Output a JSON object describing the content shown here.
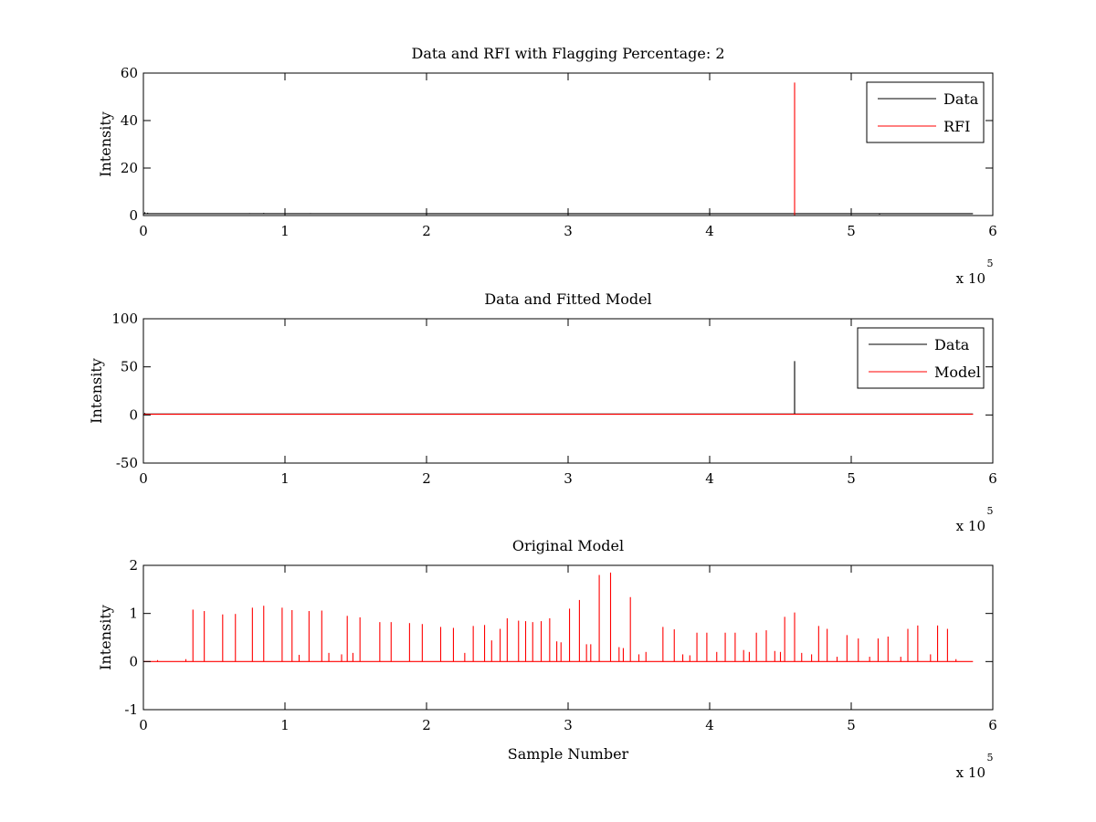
{
  "chart_data": [
    {
      "type": "line",
      "title": "Data and RFI with Flagging Percentage: 2",
      "xlabel": "",
      "ylabel": "Intensity",
      "xlim": [
        0,
        600000
      ],
      "ylim": [
        0,
        60
      ],
      "xticks": [
        0,
        1,
        2,
        3,
        4,
        5,
        6
      ],
      "yticks": [
        0,
        20,
        40,
        60
      ],
      "x_multiplier": "x 10",
      "x_multiplier_exp": "5",
      "legend": {
        "position": "top-right",
        "entries": [
          "Data",
          "RFI"
        ]
      },
      "series": [
        {
          "name": "Data",
          "color": "#000000",
          "baseline": 0.8,
          "x_end": 586000,
          "spikes": [
            [
              1000,
              1.4
            ],
            [
              3000,
              1.2
            ],
            [
              20000,
              0.6
            ],
            [
              75000,
              1.0
            ],
            [
              85000,
              1.1
            ],
            [
              100000,
              0.9
            ],
            [
              118000,
              1.0
            ],
            [
              128000,
              0.9
            ],
            [
              165000,
              0.8
            ],
            [
              180000,
              0.9
            ],
            [
              200000,
              0.9
            ],
            [
              218000,
              0.9
            ],
            [
              240000,
              0.8
            ],
            [
              262000,
              0.7
            ],
            [
              280000,
              0.8
            ],
            [
              296000,
              0.7
            ],
            [
              322000,
              0.9
            ],
            [
              355000,
              0.8
            ],
            [
              390000,
              0.6
            ],
            [
              460000,
              0.5
            ],
            [
              520000,
              0.4
            ],
            [
              575000,
              0.8
            ]
          ]
        },
        {
          "name": "RFI",
          "color": "#ff0000",
          "baseline": 0,
          "x_end": 586000,
          "spikes": [
            [
              460000,
              56.0
            ]
          ]
        }
      ]
    },
    {
      "type": "line",
      "title": "Data and Fitted Model",
      "xlabel": "",
      "ylabel": "Intensity",
      "xlim": [
        0,
        600000
      ],
      "ylim": [
        -50,
        100
      ],
      "xticks": [
        0,
        1,
        2,
        3,
        4,
        5,
        6
      ],
      "yticks": [
        -50,
        0,
        50,
        100
      ],
      "x_multiplier": "x 10",
      "x_multiplier_exp": "5",
      "legend": {
        "position": "top-right",
        "entries": [
          "Data",
          "Model"
        ]
      },
      "series": [
        {
          "name": "Data",
          "color": "#000000",
          "baseline": 1.0,
          "x_end": 586000,
          "spikes": [
            [
              1000,
              2.0
            ],
            [
              460000,
              56.0
            ]
          ]
        },
        {
          "name": "Model",
          "color": "#ff0000",
          "baseline": 0.7,
          "x_end": 586000,
          "spikes": []
        }
      ]
    },
    {
      "type": "line",
      "title": "Original Model",
      "xlabel": "Sample Number",
      "ylabel": "Intensity",
      "xlim": [
        0,
        600000
      ],
      "ylim": [
        -1,
        2
      ],
      "xticks": [
        0,
        1,
        2,
        3,
        4,
        5,
        6
      ],
      "yticks": [
        -1,
        0,
        1,
        2
      ],
      "x_multiplier": "x 10",
      "x_multiplier_exp": "5",
      "legend": null,
      "series": [
        {
          "color": "#ff0000",
          "baseline": 0,
          "x_end": 586000,
          "spikes": [
            [
              10000,
              0.03
            ],
            [
              30000,
              0.05
            ],
            [
              35000,
              1.08
            ],
            [
              43000,
              1.05
            ],
            [
              56000,
              0.98
            ],
            [
              65000,
              0.99
            ],
            [
              77000,
              1.12
            ],
            [
              85000,
              1.16
            ],
            [
              98000,
              1.12
            ],
            [
              105000,
              1.07
            ],
            [
              110000,
              0.14
            ],
            [
              117000,
              1.05
            ],
            [
              126000,
              1.06
            ],
            [
              131000,
              0.18
            ],
            [
              140000,
              0.15
            ],
            [
              144000,
              0.95
            ],
            [
              148000,
              0.18
            ],
            [
              153000,
              0.92
            ],
            [
              167000,
              0.82
            ],
            [
              175000,
              0.82
            ],
            [
              188000,
              0.8
            ],
            [
              197000,
              0.78
            ],
            [
              210000,
              0.72
            ],
            [
              219000,
              0.7
            ],
            [
              227000,
              0.18
            ],
            [
              233000,
              0.74
            ],
            [
              241000,
              0.76
            ],
            [
              246000,
              0.44
            ],
            [
              252000,
              0.68
            ],
            [
              257000,
              0.9
            ],
            [
              265000,
              0.85
            ],
            [
              270000,
              0.84
            ],
            [
              275000,
              0.82
            ],
            [
              281000,
              0.84
            ],
            [
              287000,
              0.9
            ],
            [
              292000,
              0.42
            ],
            [
              295000,
              0.4
            ],
            [
              301000,
              1.1
            ],
            [
              308000,
              1.28
            ],
            [
              313000,
              0.36
            ],
            [
              316000,
              0.36
            ],
            [
              322000,
              1.8
            ],
            [
              330000,
              1.85
            ],
            [
              336000,
              0.3
            ],
            [
              339000,
              0.28
            ],
            [
              344000,
              1.34
            ],
            [
              350000,
              0.15
            ],
            [
              355000,
              0.2
            ],
            [
              367000,
              0.72
            ],
            [
              375000,
              0.67
            ],
            [
              381000,
              0.15
            ],
            [
              386000,
              0.13
            ],
            [
              391000,
              0.6
            ],
            [
              398000,
              0.6
            ],
            [
              405000,
              0.2
            ],
            [
              411000,
              0.6
            ],
            [
              418000,
              0.6
            ],
            [
              424000,
              0.24
            ],
            [
              428000,
              0.2
            ],
            [
              433000,
              0.6
            ],
            [
              440000,
              0.65
            ],
            [
              446000,
              0.22
            ],
            [
              450000,
              0.2
            ],
            [
              453000,
              0.93
            ],
            [
              460000,
              1.02
            ],
            [
              465000,
              0.18
            ],
            [
              472000,
              0.15
            ],
            [
              477000,
              0.74
            ],
            [
              483000,
              0.68
            ],
            [
              490000,
              0.1
            ],
            [
              497000,
              0.55
            ],
            [
              505000,
              0.48
            ],
            [
              513000,
              0.1
            ],
            [
              519000,
              0.48
            ],
            [
              526000,
              0.52
            ],
            [
              535000,
              0.1
            ],
            [
              540000,
              0.68
            ],
            [
              547000,
              0.75
            ],
            [
              556000,
              0.15
            ],
            [
              561000,
              0.75
            ],
            [
              568000,
              0.68
            ],
            [
              574000,
              0.05
            ]
          ]
        }
      ]
    }
  ]
}
